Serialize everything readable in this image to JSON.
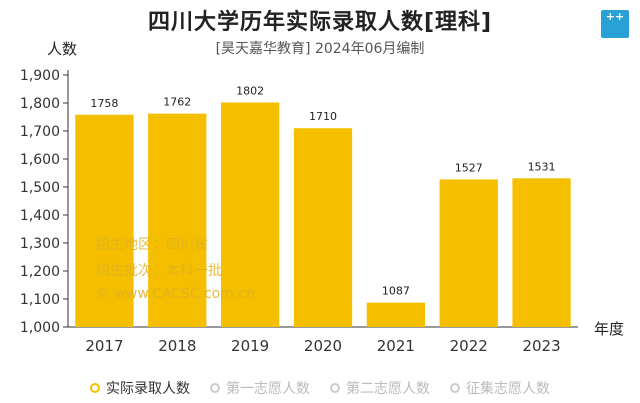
{
  "chart_data": {
    "type": "bar",
    "title": "四川大学历年实际录取人数[理科]",
    "subtitle": "[昊天嘉华教育] 2024年06月编制",
    "ylabel": "人数",
    "xlabel": "年度",
    "categories": [
      "2017",
      "2018",
      "2019",
      "2020",
      "2021",
      "2022",
      "2023"
    ],
    "series": [
      {
        "name": "实际录取人数",
        "values": [
          1758,
          1762,
          1802,
          1710,
          1087,
          1527,
          1531
        ]
      }
    ],
    "ylim": [
      1000,
      1900
    ],
    "yticks": [
      "1,000",
      "1,100",
      "1,200",
      "1,300",
      "1,400",
      "1,500",
      "1,600",
      "1,700",
      "1,800",
      "1,900"
    ],
    "ytick_values": [
      1000,
      1100,
      1200,
      1300,
      1400,
      1500,
      1600,
      1700,
      1800,
      1900
    ],
    "grid": false,
    "legend_position": "bottom",
    "bar_color": "#f5bf00"
  },
  "watermark": {
    "line1": "招生地区：四川省",
    "line2": "招生批次：本科一批",
    "line3": "© www.CACSC.com.cn"
  },
  "logo_text": "++",
  "legend": [
    {
      "label": "实际录取人数",
      "active": true
    },
    {
      "label": "第一志愿人数",
      "active": false
    },
    {
      "label": "第二志愿人数",
      "active": false
    },
    {
      "label": "征集志愿人数",
      "active": false
    }
  ]
}
